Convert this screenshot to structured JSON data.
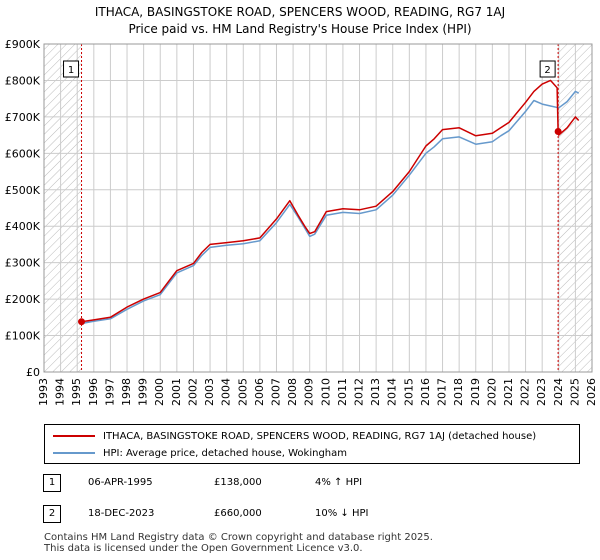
{
  "title_line1": "ITHACA, BASINGSTOKE ROAD, SPENCERS WOOD, READING, RG7 1AJ",
  "title_line2": "Price paid vs. HM Land Registry's House Price Index (HPI)",
  "legend": {
    "property_label": "ITHACA, BASINGSTOKE ROAD, SPENCERS WOOD, READING, RG7 1AJ (detached house)",
    "hpi_label": "HPI: Average price, detached house, Wokingham"
  },
  "transactions": [
    {
      "num": "1",
      "date": "06-APR-1995",
      "price": "£138,000",
      "hpi": "4% ↑ HPI"
    },
    {
      "num": "2",
      "date": "18-DEC-2023",
      "price": "£660,000",
      "hpi": "10% ↓ HPI"
    }
  ],
  "footer": {
    "line1": "Contains HM Land Registry data © Crown copyright and database right 2025.",
    "line2": "This data is licensed under the Open Government Licence v3.0."
  },
  "colors": {
    "property": "#cc0000",
    "hpi": "#6699cc",
    "grid": "#cccccc",
    "hatch": "#bbbbbb"
  },
  "chart_data": {
    "type": "line",
    "title": "ITHACA, BASINGSTOKE ROAD, SPENCERS WOOD, READING, RG7 1AJ",
    "subtitle": "Price paid vs. HM Land Registry's House Price Index (HPI)",
    "xlabel": "",
    "ylabel": "",
    "xlim": [
      1993,
      2026
    ],
    "ylim": [
      0,
      900000
    ],
    "xticks": [
      1993,
      1994,
      1995,
      1996,
      1997,
      1998,
      1999,
      2000,
      2001,
      2002,
      2003,
      2004,
      2005,
      2006,
      2007,
      2008,
      2009,
      2010,
      2011,
      2012,
      2013,
      2014,
      2015,
      2016,
      2017,
      2018,
      2019,
      2020,
      2021,
      2022,
      2023,
      2024,
      2025,
      2026
    ],
    "yticks": [
      {
        "value": 0,
        "label": "£0"
      },
      {
        "value": 100000,
        "label": "£100K"
      },
      {
        "value": 200000,
        "label": "£200K"
      },
      {
        "value": 300000,
        "label": "£300K"
      },
      {
        "value": 400000,
        "label": "£400K"
      },
      {
        "value": 500000,
        "label": "£500K"
      },
      {
        "value": 600000,
        "label": "£600K"
      },
      {
        "value": 700000,
        "label": "£700K"
      },
      {
        "value": 800000,
        "label": "£800K"
      },
      {
        "value": 900000,
        "label": "£900K"
      }
    ],
    "grid": true,
    "hatched_before": 1995.26,
    "hatched_after": 2024.0,
    "series": [
      {
        "name": "ITHACA, BASINGSTOKE ROAD, SPENCERS WOOD, READING, RG7 1AJ (detached house)",
        "color": "#cc0000",
        "x": [
          1995.26,
          1996,
          1997,
          1998,
          1999,
          2000,
          2000.5,
          2001,
          2002,
          2002.5,
          2003,
          2004,
          2005,
          2006,
          2007,
          2007.8,
          2008.3,
          2008.7,
          2009,
          2009.3,
          2010,
          2011,
          2012,
          2013,
          2014,
          2015,
          2016,
          2016.5,
          2017,
          2018,
          2019,
          2020,
          2020.5,
          2021,
          2022,
          2022.5,
          2023,
          2023.5,
          2023.9,
          2023.96,
          2024,
          2024.5,
          2025,
          2025.2
        ],
        "y": [
          138000,
          143000,
          150000,
          178000,
          200000,
          218000,
          248000,
          278000,
          298000,
          328000,
          350000,
          355000,
          360000,
          368000,
          420000,
          470000,
          430000,
          400000,
          380000,
          385000,
          440000,
          448000,
          445000,
          455000,
          495000,
          550000,
          620000,
          640000,
          665000,
          670000,
          648000,
          655000,
          670000,
          685000,
          740000,
          770000,
          790000,
          800000,
          780000,
          660000,
          650000,
          670000,
          700000,
          690000
        ]
      },
      {
        "name": "HPI: Average price, detached house, Wokingham",
        "color": "#6699cc",
        "x": [
          1995.26,
          1996,
          1997,
          1998,
          1999,
          2000,
          2000.5,
          2001,
          2002,
          2002.5,
          2003,
          2004,
          2005,
          2006,
          2007,
          2007.8,
          2008.3,
          2008.7,
          2009,
          2009.3,
          2010,
          2011,
          2012,
          2013,
          2014,
          2015,
          2016,
          2016.5,
          2017,
          2018,
          2019,
          2020,
          2020.5,
          2021,
          2022,
          2022.5,
          2023,
          2023.5,
          2024,
          2024.5,
          2025,
          2025.2
        ],
        "y": [
          133000,
          139000,
          146000,
          172000,
          195000,
          212000,
          242000,
          272000,
          292000,
          320000,
          342000,
          348000,
          352000,
          360000,
          410000,
          460000,
          425000,
          395000,
          372000,
          378000,
          430000,
          438000,
          435000,
          445000,
          485000,
          540000,
          600000,
          618000,
          640000,
          645000,
          625000,
          632000,
          648000,
          662000,
          715000,
          745000,
          735000,
          730000,
          725000,
          742000,
          770000,
          765000
        ]
      }
    ],
    "annotations": [
      {
        "label": "1",
        "x": 1995.26,
        "y": 138000,
        "price": "£138,000"
      },
      {
        "label": "2",
        "x": 2023.96,
        "y": 660000,
        "price": "£660,000"
      }
    ]
  }
}
